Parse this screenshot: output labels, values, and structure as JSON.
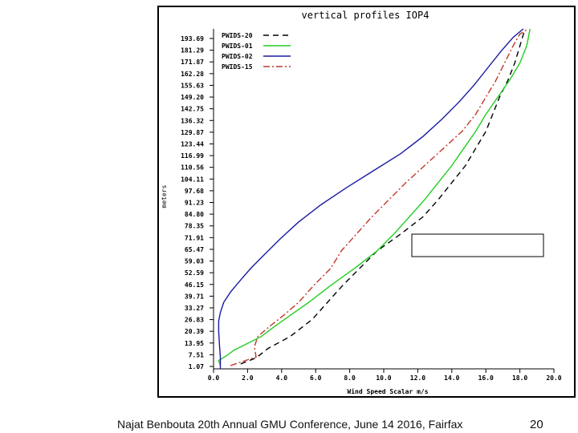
{
  "chart_data": {
    "type": "line",
    "title": "vertical profiles IOP4",
    "xlabel": "Wind Speed Scalar m/s",
    "ylabel": "meters",
    "xlim": [
      0,
      20
    ],
    "ylim": [
      1.07,
      200.0
    ],
    "x_ticks": [
      0,
      2,
      4,
      6,
      8,
      10,
      12,
      14,
      16,
      18,
      20
    ],
    "x_tick_labels": [
      "0.0",
      "2.0",
      "4.0",
      "6.0",
      "8.0",
      "10.0",
      "12.0",
      "14.0",
      "16.0",
      "18.0",
      "20.0"
    ],
    "y_tick_labels": [
      "193.69",
      "181.29",
      "171.87",
      "162.28",
      "155.63",
      "149.20",
      "142.75",
      "136.32",
      "129.87",
      "123.44",
      "116.99",
      "110.56",
      "104.11",
      "97.68",
      "91.23",
      "84.80",
      "78.35",
      "71.91",
      "65.47",
      "59.03",
      "52.59",
      "46.15",
      "39.71",
      "33.27",
      "26.83",
      "20.39",
      "13.95",
      "7.51",
      "1.07"
    ],
    "series": [
      {
        "name": "PWIDS-20",
        "color": "#000000",
        "dash": "7,5",
        "points": [
          [
            1.6,
            4
          ],
          [
            2.5,
            7.5
          ],
          [
            3.2,
            13
          ],
          [
            4.5,
            20
          ],
          [
            5.8,
            30
          ],
          [
            6.7,
            40
          ],
          [
            7.6,
            50
          ],
          [
            8.6,
            60
          ],
          [
            9.6,
            70
          ],
          [
            11.0,
            80
          ],
          [
            12.3,
            90
          ],
          [
            13.2,
            100
          ],
          [
            14.0,
            110
          ],
          [
            14.8,
            120
          ],
          [
            15.4,
            130
          ],
          [
            16.0,
            140
          ],
          [
            16.4,
            150
          ],
          [
            16.8,
            160
          ],
          [
            17.3,
            170
          ],
          [
            17.7,
            180
          ],
          [
            18.0,
            190
          ],
          [
            18.3,
            200
          ]
        ]
      },
      {
        "name": "PWIDS-01",
        "color": "#22cc22",
        "dash": "",
        "points": [
          [
            0.4,
            3
          ],
          [
            0.3,
            6
          ],
          [
            0.8,
            9
          ],
          [
            1.2,
            12
          ],
          [
            2.0,
            16
          ],
          [
            2.8,
            20
          ],
          [
            3.6,
            26
          ],
          [
            4.6,
            33
          ],
          [
            5.6,
            40
          ],
          [
            6.9,
            50
          ],
          [
            8.3,
            60
          ],
          [
            9.6,
            70
          ],
          [
            10.6,
            80
          ],
          [
            11.5,
            90
          ],
          [
            12.4,
            100
          ],
          [
            13.2,
            110
          ],
          [
            14.0,
            120
          ],
          [
            14.7,
            130
          ],
          [
            15.4,
            140
          ],
          [
            16.0,
            150
          ],
          [
            16.7,
            160
          ],
          [
            17.4,
            170
          ],
          [
            18.0,
            180
          ],
          [
            18.4,
            190
          ],
          [
            18.6,
            200
          ]
        ]
      },
      {
        "name": "PWIDS-02",
        "color": "#1a1aa0",
        "dash": "",
        "points": [
          [
            0.4,
            1.07
          ],
          [
            0.4,
            8
          ],
          [
            0.35,
            15
          ],
          [
            0.3,
            23
          ],
          [
            0.3,
            29
          ],
          [
            0.4,
            34
          ],
          [
            0.6,
            40
          ],
          [
            1.0,
            46
          ],
          [
            1.5,
            52
          ],
          [
            2.2,
            60
          ],
          [
            3.0,
            68
          ],
          [
            3.9,
            77
          ],
          [
            5.0,
            87
          ],
          [
            6.3,
            97
          ],
          [
            7.8,
            107
          ],
          [
            9.4,
            117
          ],
          [
            11.0,
            127
          ],
          [
            12.3,
            137
          ],
          [
            13.4,
            147
          ],
          [
            14.4,
            157
          ],
          [
            15.3,
            167
          ],
          [
            16.1,
            177
          ],
          [
            16.9,
            187
          ],
          [
            17.6,
            195
          ],
          [
            18.2,
            200
          ]
        ]
      },
      {
        "name": "PWIDS-15",
        "color": "#c0392b",
        "dash": "8,3,2,3",
        "points": [
          [
            1.0,
            3
          ],
          [
            1.6,
            5
          ],
          [
            2.5,
            8
          ],
          [
            2.4,
            14
          ],
          [
            2.6,
            20
          ],
          [
            3.3,
            26
          ],
          [
            4.2,
            33
          ],
          [
            5.0,
            40
          ],
          [
            5.9,
            50
          ],
          [
            6.9,
            60
          ],
          [
            7.5,
            70
          ],
          [
            8.4,
            80
          ],
          [
            9.3,
            90
          ],
          [
            10.3,
            100
          ],
          [
            11.3,
            110
          ],
          [
            12.4,
            120
          ],
          [
            13.5,
            130
          ],
          [
            14.6,
            140
          ],
          [
            15.4,
            150
          ],
          [
            16.0,
            160
          ],
          [
            16.6,
            170
          ],
          [
            17.1,
            180
          ],
          [
            17.6,
            190
          ],
          [
            18.0,
            197
          ],
          [
            18.5,
            200
          ]
        ]
      }
    ]
  },
  "footer": {
    "text": "Najat Benbouta 20th Annual GMU Conference, June 14 2016, Fairfax",
    "slide_number": "20"
  }
}
